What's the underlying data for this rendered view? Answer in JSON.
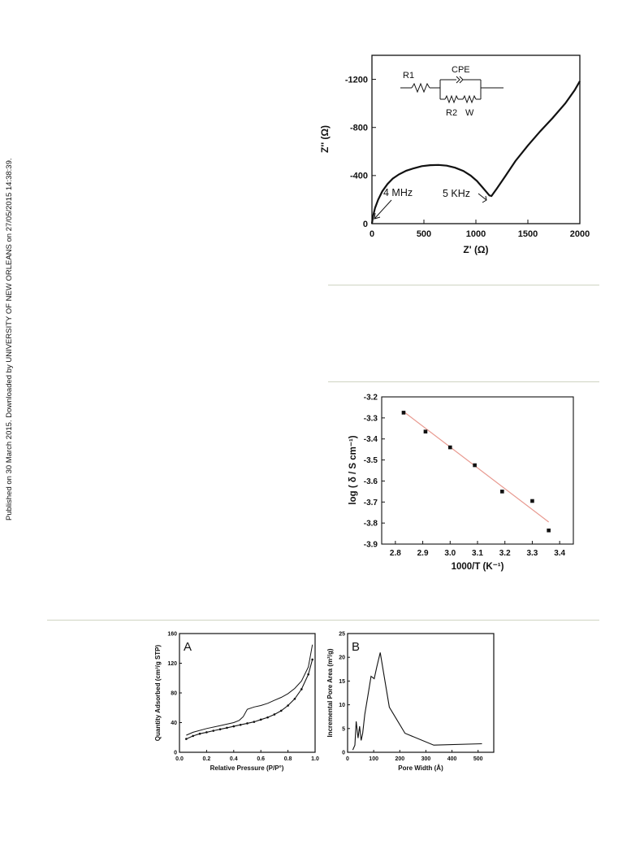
{
  "side_note": "Published on 30 March 2015. Downloaded by UNIVERSITY OF NEW ORLEANS on 27/05/2015 14:38:39.",
  "chart_data": [
    {
      "id": "nyquist",
      "type": "line",
      "xlabel": "Z' (Ω)",
      "ylabel": "Z'' (Ω)",
      "xlim": [
        0,
        2000
      ],
      "ylim": [
        0,
        -1400
      ],
      "xticks": [
        0,
        500,
        1000,
        1500,
        2000
      ],
      "yticks": [
        0,
        -400,
        -800,
        -1200
      ],
      "xtick_labels": [
        "0",
        "500",
        "1000",
        "1500",
        "2000"
      ],
      "ytick_labels": [
        "0",
        "-400",
        "-800",
        "-1200"
      ],
      "annotations": [
        "4 MHz",
        "5 KHz"
      ],
      "circuit_labels": {
        "r1": "R1",
        "cpe": "CPE",
        "r2": "R2",
        "w": "W"
      },
      "series": [
        {
          "x": [
            0,
            10,
            30,
            60,
            100,
            150,
            200,
            260,
            330,
            400,
            480,
            560,
            640,
            720,
            800,
            880,
            950,
            1010,
            1060,
            1100,
            1130,
            1150,
            1200,
            1280,
            1380,
            1500,
            1620,
            1740,
            1860,
            1950,
            2000
          ],
          "y": [
            0,
            -60,
            -130,
            -200,
            -270,
            -330,
            -375,
            -410,
            -440,
            -460,
            -478,
            -486,
            -488,
            -482,
            -465,
            -438,
            -400,
            -355,
            -305,
            -265,
            -235,
            -230,
            -290,
            -390,
            -520,
            -650,
            -770,
            -880,
            -1000,
            -1110,
            -1185
          ]
        }
      ]
    },
    {
      "id": "arrhenius",
      "type": "scatter",
      "xlabel": "1000/T (K⁻¹)",
      "ylabel": "log ( δ / S cm⁻¹)",
      "xlim": [
        2.75,
        3.45
      ],
      "ylim": [
        -3.9,
        -3.2
      ],
      "xticks": [
        2.8,
        2.9,
        3.0,
        3.1,
        3.2,
        3.3,
        3.4
      ],
      "yticks": [
        -3.2,
        -3.3,
        -3.4,
        -3.5,
        -3.6,
        -3.7,
        -3.8,
        -3.9
      ],
      "xtick_labels": [
        "2.8",
        "2.9",
        "3.0",
        "3.1",
        "3.2",
        "3.3",
        "3.4"
      ],
      "ytick_labels": [
        "-3.2",
        "-3.3",
        "-3.4",
        "-3.5",
        "-3.6",
        "-3.7",
        "-3.8",
        "-3.9"
      ],
      "points": {
        "x": [
          2.83,
          2.91,
          3.0,
          3.09,
          3.19,
          3.3,
          3.36
        ],
        "y": [
          -3.275,
          -3.365,
          -3.44,
          -3.525,
          -3.65,
          -3.695,
          -3.835
        ]
      },
      "fit": {
        "x": [
          2.83,
          3.36
        ],
        "y": [
          -3.27,
          -3.795
        ],
        "color": "#e8998f"
      }
    },
    {
      "id": "isotherm",
      "type": "line",
      "panel_label": "A",
      "xlabel": "Relative Pressure (P/P°)",
      "ylabel": "Quantity Adsorbed (cm³/g STP)",
      "xlim": [
        0.0,
        1.0
      ],
      "ylim": [
        0,
        160
      ],
      "xticks": [
        0.0,
        0.2,
        0.4,
        0.6,
        0.8,
        1.0
      ],
      "yticks": [
        0,
        40,
        80,
        120,
        160
      ],
      "xtick_labels": [
        "0.0",
        "0.2",
        "0.4",
        "0.6",
        "0.8",
        "1.0"
      ],
      "ytick_labels": [
        "0",
        "40",
        "80",
        "120",
        "160"
      ],
      "series": [
        {
          "x": [
            0.05,
            0.1,
            0.15,
            0.2,
            0.25,
            0.3,
            0.35,
            0.4,
            0.45,
            0.5,
            0.55,
            0.6,
            0.65,
            0.7,
            0.75,
            0.8,
            0.85,
            0.9,
            0.95,
            0.98
          ],
          "y": [
            18,
            22,
            25,
            27,
            29,
            31,
            33,
            35,
            37,
            39,
            41,
            44,
            47,
            51,
            56,
            63,
            72,
            85,
            105,
            125
          ]
        },
        {
          "x": [
            0.98,
            0.95,
            0.9,
            0.85,
            0.8,
            0.75,
            0.7,
            0.65,
            0.6,
            0.55,
            0.5,
            0.47,
            0.44,
            0.4,
            0.3,
            0.2,
            0.1,
            0.05
          ],
          "y": [
            145,
            115,
            96,
            86,
            79,
            74,
            70,
            66,
            63,
            61,
            58,
            48,
            43,
            40,
            36,
            32,
            27,
            23
          ]
        }
      ]
    },
    {
      "id": "pore",
      "type": "line",
      "panel_label": "B",
      "xlabel": "Pore Width (Å)",
      "ylabel": "Incremental Pore Area (m²/g)",
      "xlim": [
        0,
        560
      ],
      "ylim": [
        0,
        25
      ],
      "xticks": [
        0,
        100,
        200,
        300,
        400,
        500
      ],
      "yticks": [
        0,
        5,
        10,
        15,
        20,
        25
      ],
      "xtick_labels": [
        "0",
        "100",
        "200",
        "300",
        "400",
        "500"
      ],
      "ytick_labels": [
        "0",
        "5",
        "10",
        "15",
        "20",
        "25"
      ],
      "series": [
        {
          "x": [
            20,
            28,
            33,
            40,
            46,
            52,
            58,
            66,
            78,
            90,
            102,
            112,
            125,
            160,
            220,
            330,
            515
          ],
          "y": [
            0.5,
            1.5,
            6.5,
            3.0,
            5.5,
            2.5,
            4.0,
            8.0,
            12.0,
            16.0,
            15.5,
            18.0,
            21.0,
            9.5,
            4.0,
            1.5,
            1.8
          ]
        }
      ]
    }
  ]
}
